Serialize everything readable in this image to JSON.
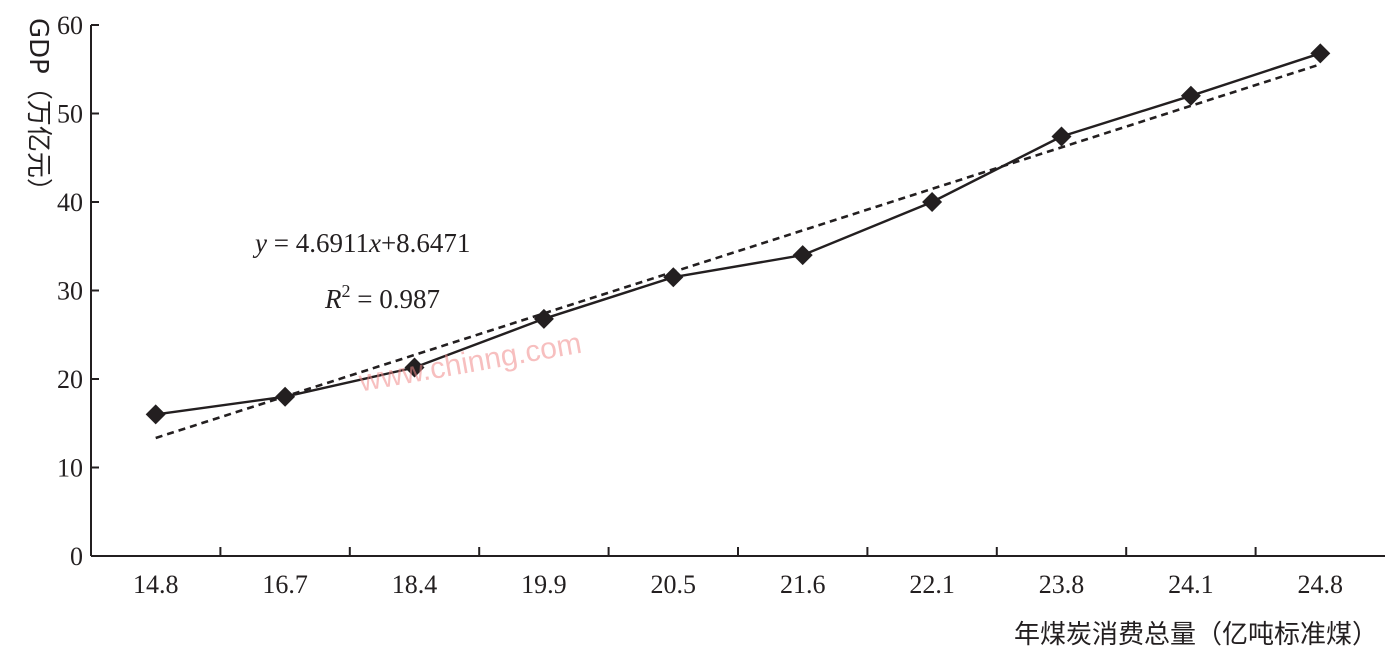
{
  "chart_data": {
    "type": "line",
    "categories": [
      "14.8",
      "16.7",
      "18.4",
      "19.9",
      "20.5",
      "21.6",
      "22.1",
      "23.8",
      "24.1",
      "24.8"
    ],
    "series": [
      {
        "values": [
          16.0,
          18.0,
          21.3,
          26.8,
          31.5,
          34.0,
          40.0,
          47.4,
          52.0,
          56.8
        ],
        "marker": "diamond",
        "color": "#231f20"
      }
    ],
    "trendline": {
      "type": "linear",
      "slope": 4.6911,
      "intercept": 8.6471,
      "style": "dashed",
      "color": "#231f20"
    },
    "equation_parts": {
      "y": "y",
      "eq": " = 4.6911",
      "x": "x",
      "rest": "+8.6471"
    },
    "r2_parts": {
      "R": "R",
      "sup": "2",
      "rest": " = 0.987"
    },
    "title": "",
    "xlabel": "年煤炭消费总量（亿吨标准煤）",
    "ylabel": "GDP（万亿元）",
    "ylim": [
      0,
      60
    ],
    "yticks": [
      0,
      10,
      20,
      30,
      40,
      50,
      60
    ],
    "grid": false,
    "legend": "none",
    "watermark": "www.chinng.com"
  }
}
